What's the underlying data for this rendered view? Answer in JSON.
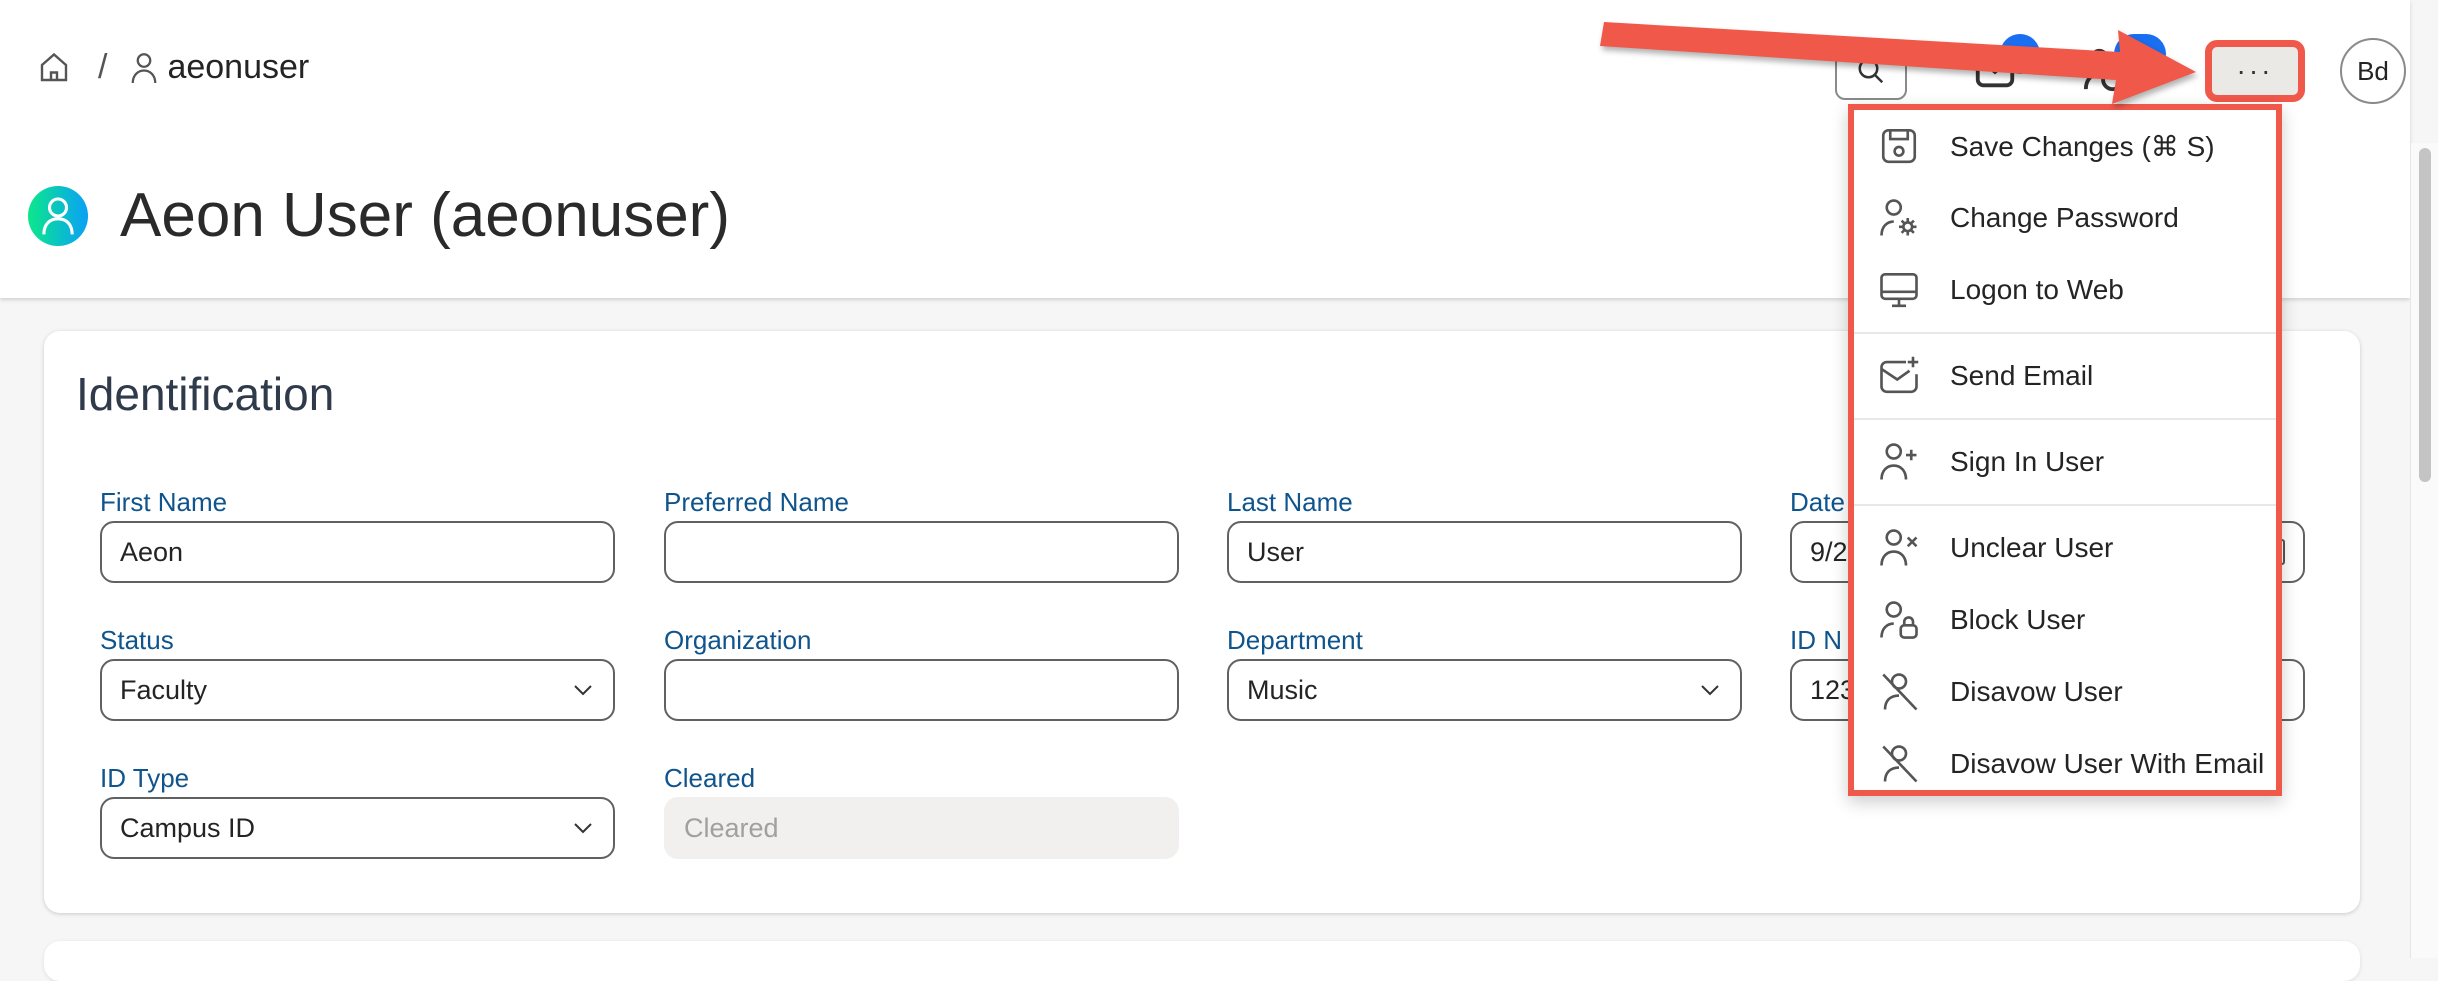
{
  "breadcrumb": {
    "user": "aeonuser"
  },
  "page": {
    "title": "Aeon User (aeonuser)"
  },
  "topbar": {
    "more_label": "···",
    "avatar_initials": "Bd"
  },
  "section": {
    "title": "Identification"
  },
  "fields": {
    "first_name": {
      "label": "First Name",
      "value": "Aeon"
    },
    "preferred_name": {
      "label": "Preferred Name",
      "value": ""
    },
    "last_name": {
      "label": "Last Name",
      "value": "User"
    },
    "date": {
      "label": "Date",
      "value": "9/2"
    },
    "status": {
      "label": "Status",
      "value": "Faculty"
    },
    "organization": {
      "label": "Organization",
      "value": ""
    },
    "department": {
      "label": "Department",
      "value": "Music"
    },
    "id_number": {
      "label": "ID N",
      "value": "123"
    },
    "id_type": {
      "label": "ID Type",
      "value": "Campus ID"
    },
    "cleared": {
      "label": "Cleared",
      "value": "Cleared"
    }
  },
  "menu": {
    "items": [
      {
        "label": "Save Changes (⌘ S)",
        "icon": "save-icon"
      },
      {
        "label": "Change Password",
        "icon": "user-gear-icon"
      },
      {
        "label": "Logon to Web",
        "icon": "monitor-icon"
      },
      {
        "label": "Send Email",
        "icon": "mail-add-icon"
      },
      {
        "label": "Sign In User",
        "icon": "user-add-icon"
      },
      {
        "label": "Unclear User",
        "icon": "user-x-icon"
      },
      {
        "label": "Block User",
        "icon": "user-lock-icon"
      },
      {
        "label": "Disavow User",
        "icon": "user-slash-icon"
      },
      {
        "label": "Disavow User With Email",
        "icon": "user-slash-icon"
      }
    ]
  },
  "colors": {
    "highlight": "#f0584a",
    "label": "#0f548c",
    "badge": "#1a6ef0"
  }
}
